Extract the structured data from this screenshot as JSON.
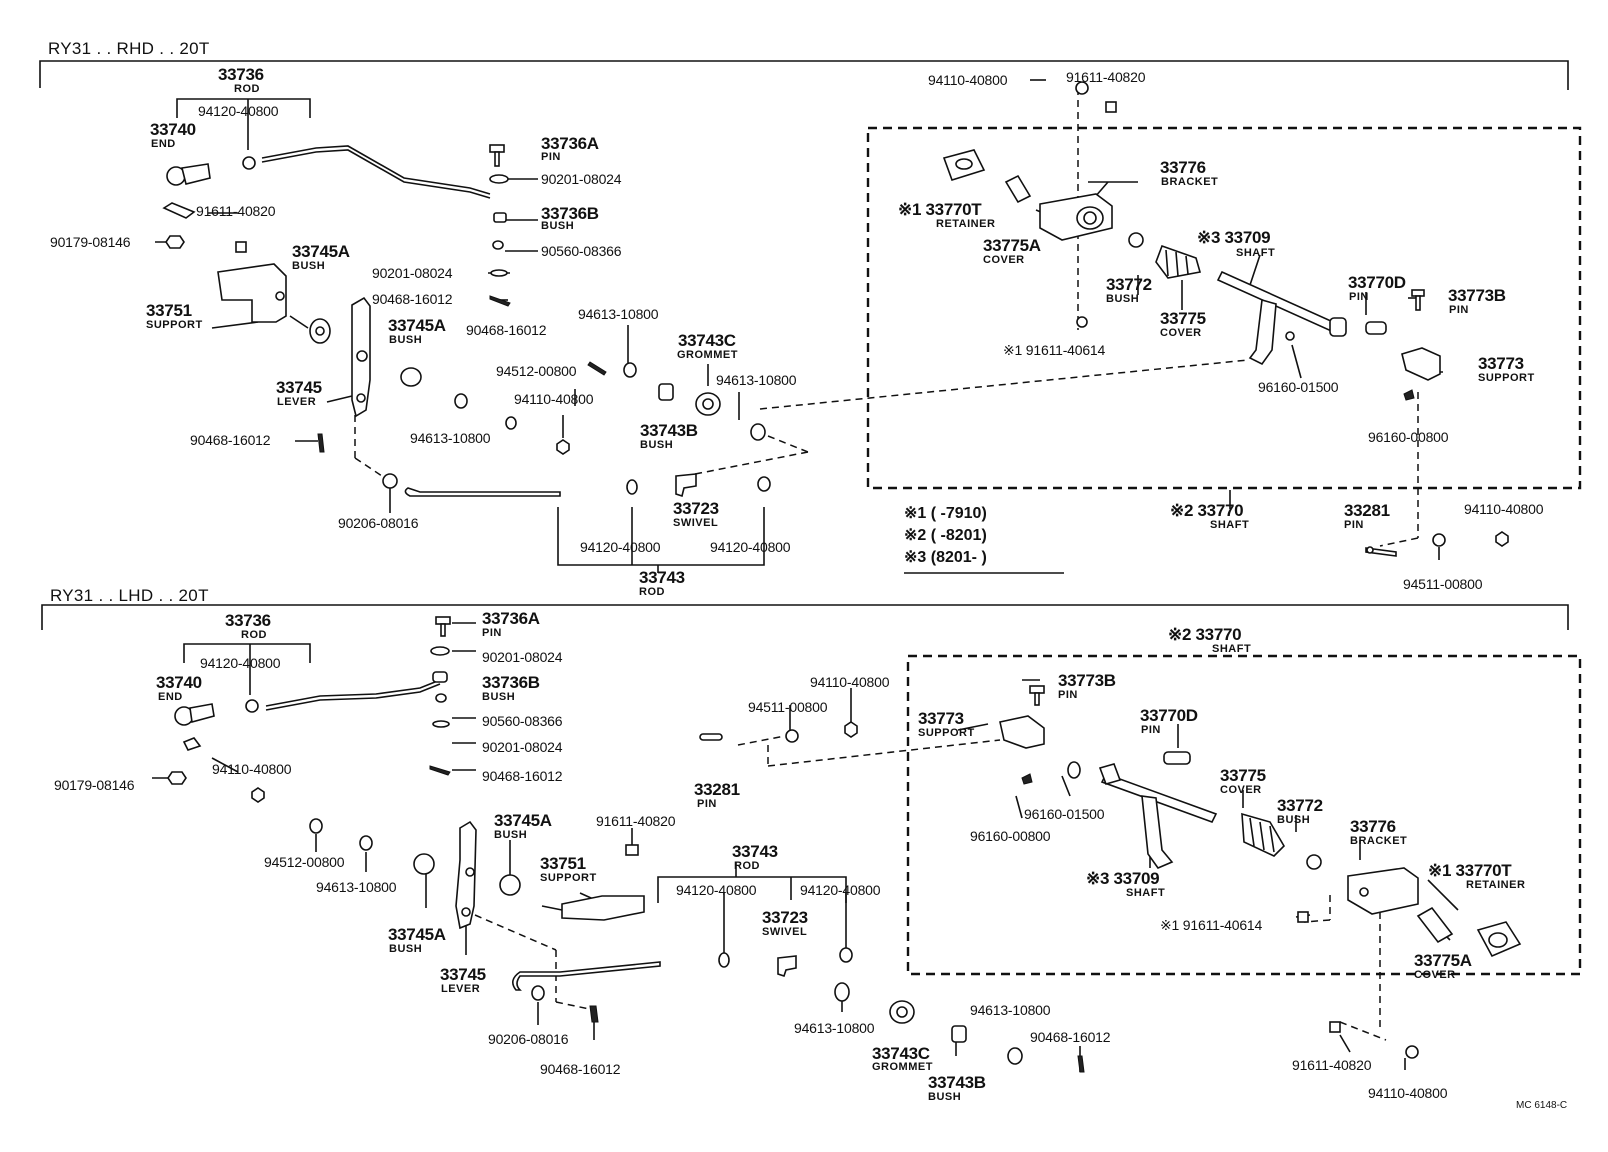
{
  "diagram": {
    "footer_code": "MC 6148-C",
    "notes": {
      "n1": "※1 (      -7910)",
      "n2": "※2 (      -8201)",
      "n3": "※3 (8201-       )"
    }
  },
  "rhd": {
    "title": "RY31 . . RHD . . 20T",
    "rod_33736": "33736",
    "rod_33736_name": "ROD",
    "nut_94120_a": "94120-40800",
    "end_33740": "33740",
    "end_33740_name": "END",
    "pin_33736A": "33736A",
    "pin_33736A_name": "PIN",
    "washer_90201_a": "90201-08024",
    "bush_33736B": "33736B",
    "bush_33736B_name": "BUSH",
    "bolt_91611_a": "91611-40820",
    "bush_90560": "90560-08366",
    "nut_90179": "90179-08146",
    "bush_33745A_a": "33745A",
    "bush_33745A_a_name": "BUSH",
    "washer_90201_b": "90201-08024",
    "pin_90468_a": "90468-16012",
    "support_33751": "33751",
    "support_33751_name": "SUPPORT",
    "bush_33745A_b": "33745A",
    "bush_33745A_b_name": "BUSH",
    "pin_90468_b": "90468-16012",
    "washer_94613_a": "94613-10800",
    "grommet_33743C": "33743C",
    "grommet_33743C_name": "GROMMET",
    "washer_94512": "94512-00800",
    "nut_94110_a": "94110-40800",
    "washer_94613_b": "94613-10800",
    "lever_33745": "33745",
    "lever_33745_name": "LEVER",
    "washer_94613_c": "94613-10800",
    "bush_33743B": "33743B",
    "bush_33743B_name": "BUSH",
    "pin_90468_c": "90468-16012",
    "washer_90206": "90206-08016",
    "swivel_33723": "33723",
    "swivel_33723_name": "SWIVEL",
    "nut_94120_b": "94120-40800",
    "nut_94120_c": "94120-40800",
    "rod_33743": "33743",
    "rod_33743_name": "ROD",
    "nut_94110_top": "94110-40800",
    "bolt_91611_top": "91611-40820",
    "retainer_33770T": "※1 33770T",
    "retainer_33770T_name": "RETAINER",
    "bracket_33776": "33776",
    "bracket_33776_name": "BRACKET",
    "cover_33775A": "33775A",
    "cover_33775A_name": "COVER",
    "shaft_33709": "※3  33709",
    "shaft_33709_name": "SHAFT",
    "bush_33772": "33772",
    "bush_33772_name": "BUSH",
    "cover_33775": "33775",
    "cover_33775_name": "COVER",
    "pin_33770D": "33770D",
    "pin_33770D_name": "PIN",
    "pin_33773B": "33773B",
    "pin_33773B_name": "PIN",
    "bolt_91611_40614": "※1  91611-40614",
    "support_33773": "33773",
    "support_33773_name": "SUPPORT",
    "clip_96160_01500": "96160-01500",
    "clip_96160_00800": "96160-00800",
    "shaft_33770": "※2  33770",
    "shaft_33770_name": "SHAFT",
    "pin_33281": "33281",
    "pin_33281_name": "PIN",
    "nut_94110_b": "94110-40800",
    "washer_94511": "94511-00800"
  },
  "lhd": {
    "title": "RY31 . . LHD . . 20T",
    "rod_33736": "33736",
    "rod_33736_name": "ROD",
    "pin_33736A": "33736A",
    "pin_33736A_name": "PIN",
    "nut_94120_a": "94120-40800",
    "washer_90201_a": "90201-08024",
    "end_33740": "33740",
    "end_33740_name": "END",
    "bush_33736B": "33736B",
    "bush_33736B_name": "BUSH",
    "bush_90560": "90560-08366",
    "washer_90201_b": "90201-08024",
    "nut_94110_a": "94110-40800",
    "pin_90468_a": "90468-16012",
    "nut_90179": "90179-08146",
    "nut_94110_b": "94110-40800",
    "washer_94511": "94511-00800",
    "pin_33281": "33281",
    "pin_33281_name": "PIN",
    "washer_94512": "94512-00800",
    "washer_94613_a": "94613-10800",
    "bush_33745A_a": "33745A",
    "bush_33745A_a_name": "BUSH",
    "bolt_91611_a": "91611-40820",
    "support_33751": "33751",
    "support_33751_name": "SUPPORT",
    "bush_33745A_b": "33745A",
    "bush_33745A_b_name": "BUSH",
    "lever_33745": "33745",
    "lever_33745_name": "LEVER",
    "rod_33743": "33743",
    "rod_33743_name": "ROD",
    "nut_94120_b": "94120-40800",
    "nut_94120_c": "94120-40800",
    "swivel_33723": "33723",
    "swivel_33723_name": "SWIVEL",
    "washer_90206": "90206-08016",
    "pin_90468_b": "90468-16012",
    "washer_94613_b": "94613-10800",
    "grommet_33743C": "33743C",
    "grommet_33743C_name": "GROMMET",
    "bush_33743B": "33743B",
    "bush_33743B_name": "BUSH",
    "washer_94613_c": "94613-10800",
    "pin_90468_c": "90468-16012",
    "shaft_33770": "※2  33770",
    "shaft_33770_name": "SHAFT",
    "pin_33773B": "33773B",
    "pin_33773B_name": "PIN",
    "support_33773": "33773",
    "support_33773_name": "SUPPORT",
    "pin_33770D": "33770D",
    "pin_33770D_name": "PIN",
    "clip_96160_01500": "96160-01500",
    "clip_96160_00800": "96160-00800",
    "cover_33775": "33775",
    "cover_33775_name": "COVER",
    "bush_33772": "33772",
    "bush_33772_name": "BUSH",
    "bracket_33776": "33776",
    "bracket_33776_name": "BRACKET",
    "retainer_33770T": "※1 33770T",
    "retainer_33770T_name": "RETAINER",
    "shaft_33709": "※3  33709",
    "shaft_33709_name": "SHAFT",
    "bolt_91611_40614": "※1  91611-40614",
    "cover_33775A": "33775A",
    "cover_33775A_name": "COVER",
    "bolt_91611_b": "91611-40820",
    "nut_94110_c": "94110-40800"
  }
}
